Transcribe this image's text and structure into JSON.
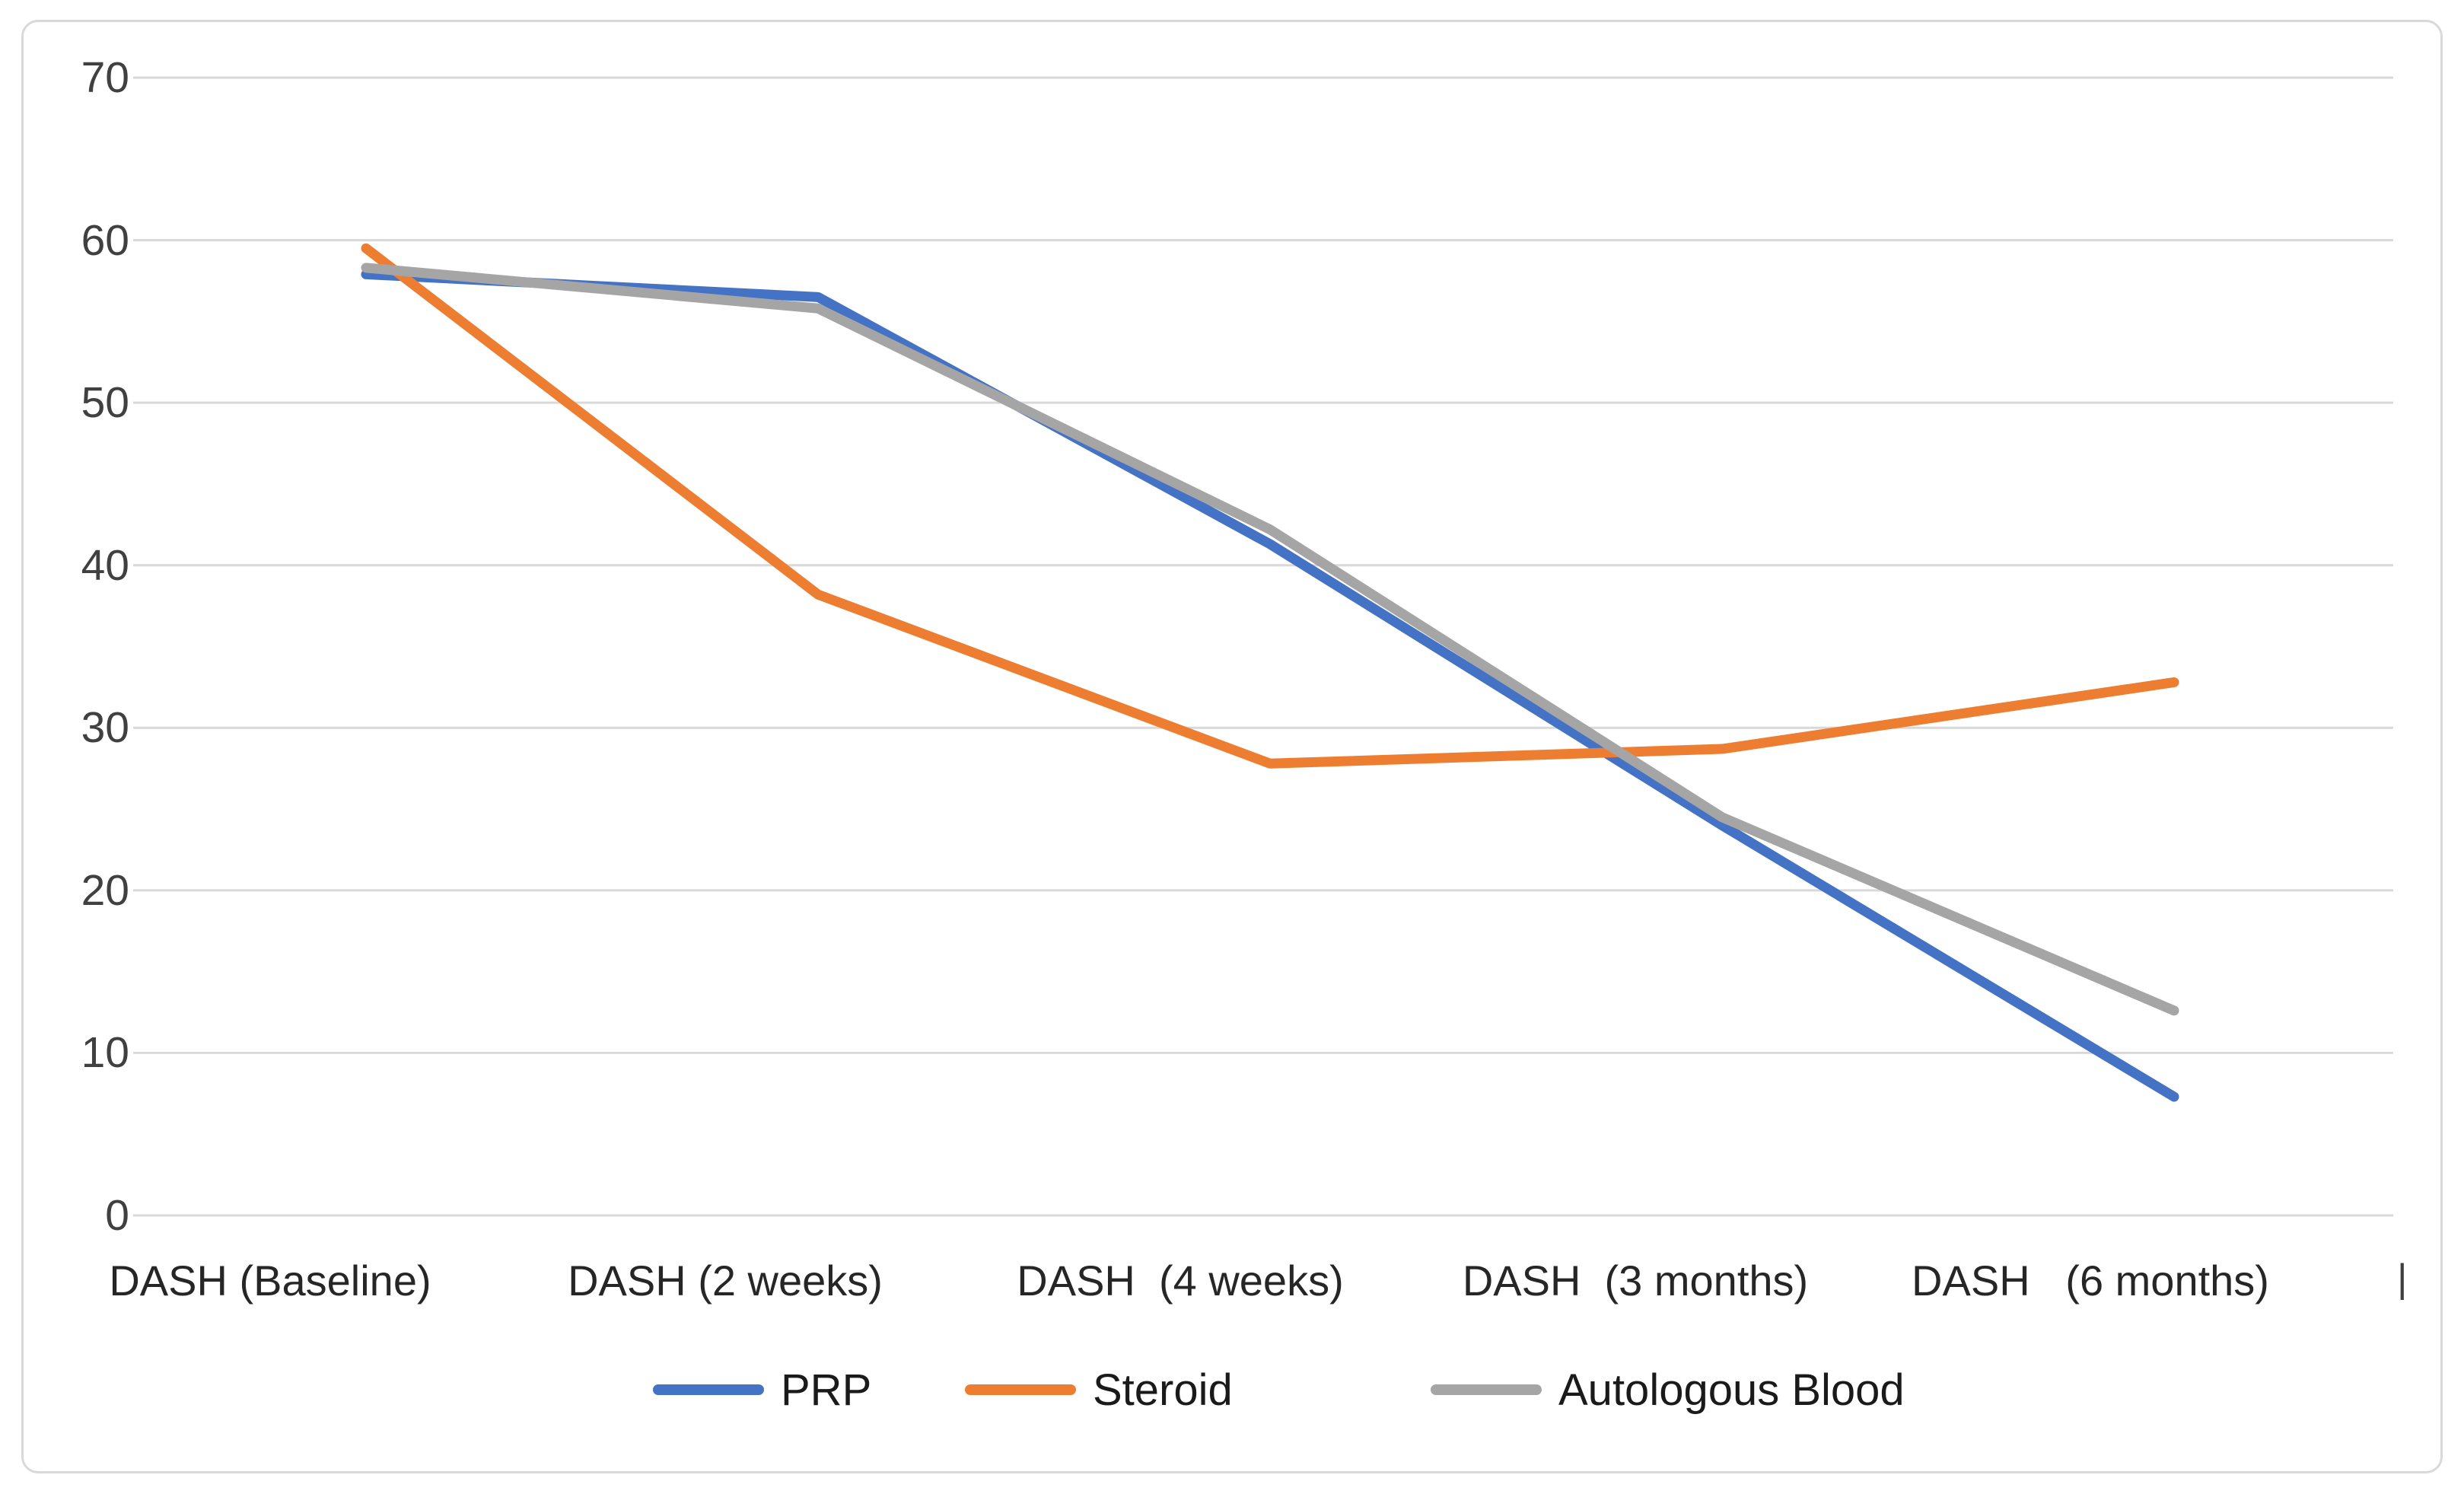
{
  "chart_data": {
    "type": "line",
    "title": "",
    "xlabel": "",
    "ylabel": "",
    "categories": [
      "DASH (Baseline)",
      "DASH (2 weeks)",
      "DASH  (4 weeks)",
      "DASH  (3 months)",
      "DASH   (6 months)"
    ],
    "series": [
      {
        "name": "PRP",
        "color": "#4472C4",
        "values": [
          57.9,
          56.5,
          41.3,
          24.0,
          7.3
        ]
      },
      {
        "name": "Steroid",
        "color": "#ED7D31",
        "values": [
          59.5,
          38.2,
          27.8,
          28.7,
          32.8
        ]
      },
      {
        "name": "Autologous Blood",
        "color": "#A5A5A5",
        "values": [
          58.3,
          55.8,
          42.2,
          24.5,
          12.6
        ]
      }
    ],
    "yticks": [
      70,
      60,
      50,
      40,
      30,
      20,
      10,
      0
    ],
    "ylim": [
      0,
      70
    ],
    "grid": true,
    "gridline_color": "#d9d9d9",
    "legend_position": "bottom",
    "stray_axis_mark": "|"
  }
}
